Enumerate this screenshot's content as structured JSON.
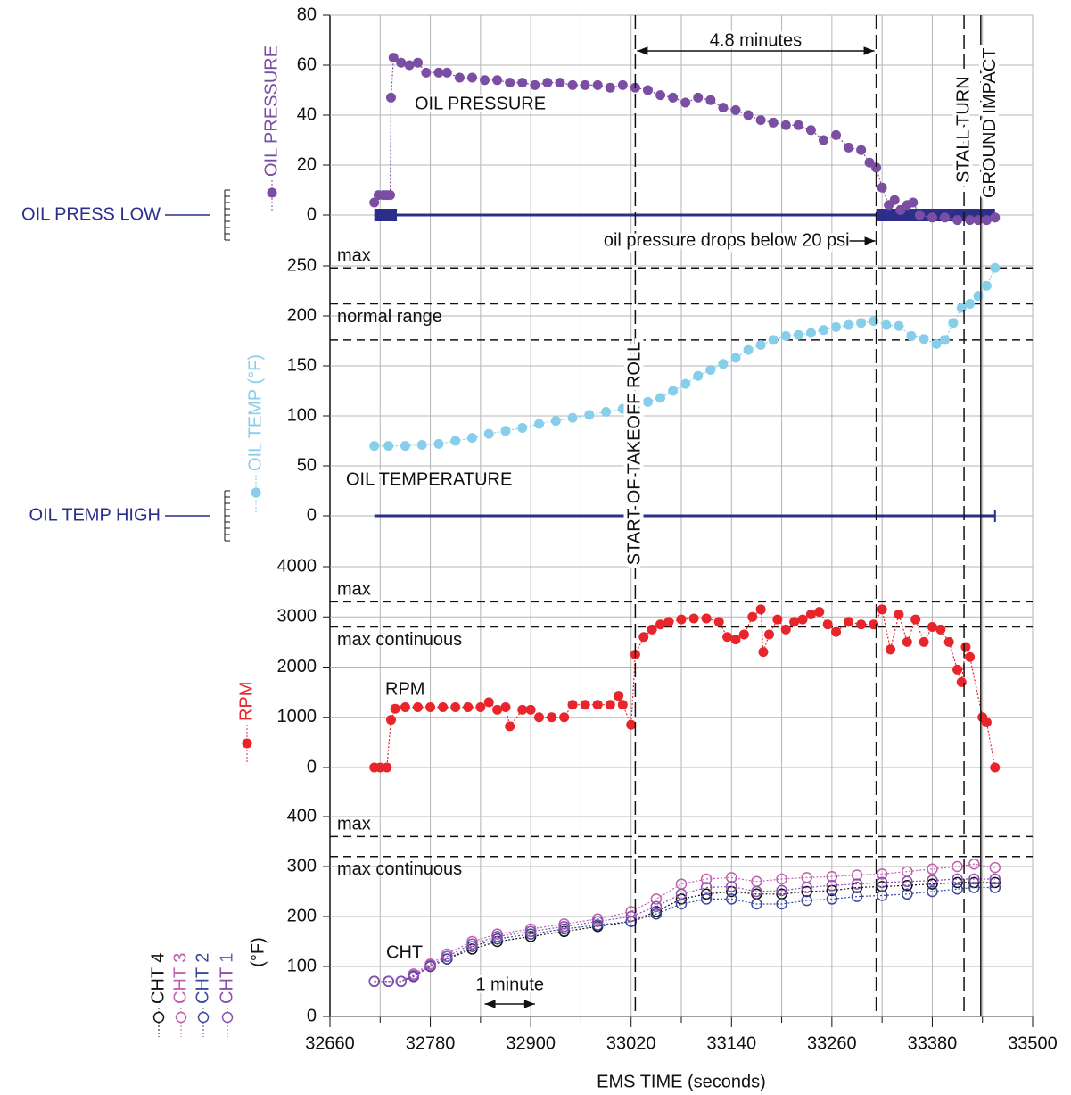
{
  "chart_data": [
    {
      "type": "scatter",
      "label": "OIL PRESSURE",
      "x": [
        32713,
        32718,
        32724,
        32728,
        32732,
        32733,
        32736,
        32745,
        32755,
        32765,
        32775,
        32790,
        32800,
        32815,
        32830,
        32845,
        32860,
        32875,
        32890,
        32905,
        32920,
        32935,
        32950,
        32965,
        32980,
        32995,
        33010,
        33025,
        33040,
        33055,
        33070,
        33085,
        33100,
        33115,
        33130,
        33145,
        33160,
        33175,
        33190,
        33205,
        33220,
        33235,
        33250,
        33265,
        33280,
        33295,
        33305,
        33313,
        33320,
        33328,
        33335,
        33342,
        33350,
        33357,
        33365,
        33380,
        33395,
        33410,
        33425,
        33435,
        33445,
        33455
      ],
      "series": [
        {
          "name": "OIL PRESSURE",
          "color": "#7b4ea3",
          "values": [
            5,
            8,
            8,
            8,
            8,
            47,
            63,
            61,
            60,
            61,
            57,
            57,
            57,
            55,
            55,
            54,
            54,
            53,
            53,
            52,
            53,
            53,
            52,
            52,
            52,
            51,
            52,
            51,
            50,
            48,
            47,
            45,
            47,
            46,
            43,
            42,
            40,
            38,
            37,
            36,
            36,
            34,
            30,
            32,
            27,
            26,
            21,
            19,
            11,
            4,
            6,
            2,
            4,
            5,
            0,
            -1,
            -1,
            -2,
            -2,
            -2,
            -2,
            -1
          ]
        }
      ],
      "xlim": [
        32660,
        33500
      ],
      "ylim": [
        0,
        80
      ],
      "yticks": [
        0,
        20,
        40,
        60,
        80
      ],
      "alarm": {
        "label": "OIL PRESS LOW",
        "line": [
          32713,
          33455
        ],
        "on": [
          [
            32713,
            32740
          ],
          [
            33313,
            33455
          ]
        ]
      }
    },
    {
      "type": "scatter",
      "label": "OIL TEMPERATURE",
      "x": [
        32713,
        32730,
        32750,
        32770,
        32790,
        32810,
        32830,
        32850,
        32870,
        32890,
        32910,
        32930,
        32950,
        32970,
        32990,
        33010,
        33025,
        33040,
        33055,
        33070,
        33085,
        33100,
        33115,
        33130,
        33145,
        33160,
        33175,
        33190,
        33205,
        33220,
        33235,
        33250,
        33265,
        33280,
        33295,
        33310,
        33325,
        33340,
        33355,
        33370,
        33385,
        33395,
        33405,
        33415,
        33425,
        33435,
        33445,
        33455
      ],
      "series": [
        {
          "name": "OIL TEMP (°F)",
          "color": "#87ceeb",
          "values": [
            70,
            70,
            70,
            71,
            72,
            75,
            78,
            82,
            85,
            88,
            92,
            95,
            98,
            101,
            104,
            107,
            110,
            114,
            118,
            125,
            132,
            140,
            146,
            152,
            158,
            166,
            171,
            176,
            180,
            181,
            183,
            186,
            189,
            191,
            193,
            195,
            191,
            190,
            180,
            177,
            172,
            176,
            193,
            208,
            212,
            220,
            230,
            248
          ]
        }
      ],
      "xlim": [
        32660,
        33500
      ],
      "ylim": [
        0,
        250
      ],
      "yticks": [
        0,
        50,
        100,
        150,
        200,
        250
      ],
      "ref_lines": [
        {
          "value": 248,
          "label": "max"
        },
        {
          "value": 212,
          "label": "normal range"
        },
        {
          "value": 176
        }
      ],
      "alarm": {
        "label": "OIL TEMP HIGH",
        "line": [
          32713,
          33455
        ]
      }
    },
    {
      "type": "scatter",
      "label": "RPM",
      "x": [
        32713,
        32720,
        32728,
        32733,
        32738,
        32750,
        32765,
        32780,
        32795,
        32810,
        32825,
        32840,
        32850,
        32860,
        32870,
        32875,
        32890,
        32900,
        32910,
        32925,
        32940,
        32950,
        32965,
        32980,
        32995,
        33005,
        33010,
        33020,
        33025,
        33035,
        33045,
        33055,
        33065,
        33080,
        33095,
        33110,
        33125,
        33135,
        33145,
        33155,
        33165,
        33175,
        33178,
        33185,
        33195,
        33205,
        33215,
        33225,
        33235,
        33245,
        33255,
        33265,
        33280,
        33295,
        33310,
        33320,
        33330,
        33340,
        33350,
        33360,
        33370,
        33380,
        33390,
        33400,
        33410,
        33415,
        33420,
        33425,
        33440,
        33445,
        33455
      ],
      "series": [
        {
          "name": "RPM",
          "color": "#e8252a",
          "values": [
            0,
            0,
            0,
            950,
            1170,
            1200,
            1200,
            1200,
            1200,
            1200,
            1200,
            1200,
            1300,
            1150,
            1200,
            820,
            1150,
            1150,
            1000,
            1000,
            1000,
            1250,
            1250,
            1250,
            1250,
            1430,
            1250,
            850,
            2250,
            2600,
            2750,
            2850,
            2900,
            2950,
            2970,
            2970,
            2900,
            2600,
            2550,
            2650,
            3000,
            3150,
            2300,
            2650,
            2950,
            2750,
            2900,
            2950,
            3050,
            3100,
            2850,
            2700,
            2900,
            2850,
            2850,
            3150,
            2350,
            3050,
            2500,
            2950,
            2500,
            2800,
            2750,
            2500,
            1950,
            1700,
            2400,
            2200,
            1000,
            900,
            0
          ]
        }
      ],
      "xlim": [
        32660,
        33500
      ],
      "ylim": [
        0,
        4000
      ],
      "yticks": [
        0,
        1000,
        2000,
        3000,
        4000
      ],
      "ref_lines": [
        {
          "value": 3300,
          "label": "max"
        },
        {
          "value": 2800,
          "label": "max continuous"
        }
      ]
    },
    {
      "type": "scatter",
      "label": "CHT",
      "ylabel": "(°F)",
      "xlabel": "EMS TIME (seconds)",
      "x": [
        32713,
        32730,
        32745,
        32760,
        32780,
        32800,
        32830,
        32860,
        32900,
        32940,
        32980,
        33020,
        33050,
        33080,
        33110,
        33140,
        33170,
        33200,
        33230,
        33260,
        33290,
        33320,
        33350,
        33380,
        33410,
        33430,
        33455
      ],
      "series": [
        {
          "name": "CHT 4",
          "color": "#111111",
          "values": [
            70,
            70,
            70,
            80,
            100,
            115,
            135,
            150,
            160,
            170,
            180,
            190,
            210,
            235,
            245,
            250,
            245,
            245,
            250,
            252,
            258,
            260,
            262,
            265,
            268,
            268,
            268
          ]
        },
        {
          "name": "CHT 3",
          "color": "#c060b0",
          "values": [
            70,
            70,
            70,
            85,
            105,
            125,
            150,
            165,
            175,
            185,
            195,
            210,
            235,
            265,
            275,
            278,
            270,
            275,
            278,
            280,
            283,
            285,
            290,
            295,
            300,
            305,
            298
          ]
        },
        {
          "name": "CHT 2",
          "color": "#3a4aa0",
          "values": [
            70,
            70,
            70,
            80,
            100,
            115,
            140,
            155,
            165,
            175,
            183,
            190,
            205,
            225,
            235,
            235,
            225,
            225,
            232,
            235,
            240,
            242,
            245,
            250,
            255,
            258,
            258
          ]
        },
        {
          "name": "CHT 1",
          "color": "#8a50b0",
          "values": [
            70,
            70,
            70,
            82,
            102,
            120,
            145,
            160,
            170,
            180,
            190,
            200,
            220,
            245,
            258,
            260,
            250,
            252,
            258,
            262,
            265,
            268,
            270,
            272,
            275,
            275,
            275
          ]
        }
      ],
      "xlim": [
        32660,
        33500
      ],
      "ylim": [
        0,
        400
      ],
      "yticks": [
        0,
        100,
        200,
        300,
        400
      ],
      "xticks": [
        32660,
        32780,
        32900,
        33020,
        33140,
        33260,
        33380,
        33500
      ],
      "xminorticks": [
        32720,
        32840,
        32960,
        33080,
        33200,
        33320,
        33440
      ],
      "ref_lines": [
        {
          "value": 360,
          "label": "max"
        },
        {
          "value": 320,
          "label": "max continuous"
        }
      ]
    }
  ],
  "events": [
    {
      "x": 33025,
      "label": "START OF TAKEOFF ROLL"
    },
    {
      "x": 33313
    },
    {
      "x": 33418,
      "label": "STALL TURN"
    },
    {
      "x": 33438,
      "label": "GROUND IMPACT"
    }
  ],
  "annotations": [
    {
      "text": "4.8 minutes",
      "span": [
        33025,
        33313
      ]
    },
    {
      "text": "1 minute",
      "span": [
        32845,
        32905
      ]
    },
    {
      "text": "oil pressure drops below 20 psi",
      "to": 33313
    }
  ]
}
